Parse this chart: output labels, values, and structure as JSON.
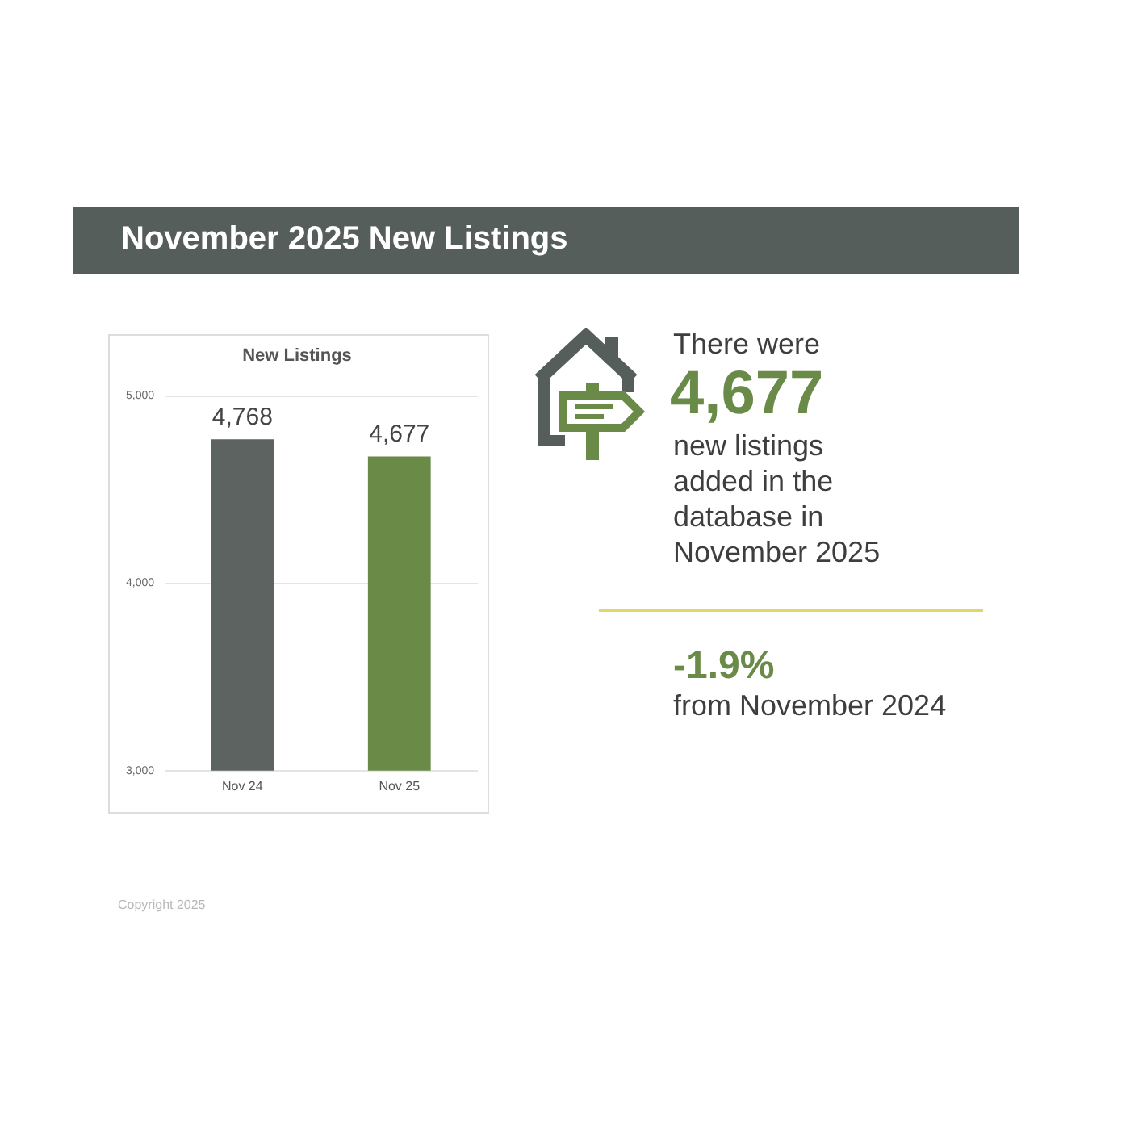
{
  "chart_data": [
    {
      "type": "other",
      "title": "November 2025 New Listings",
      "annotations": [
        "Copyright 2025"
      ]
    },
    {
      "type": "bar",
      "title": "New Listings",
      "categories": [
        "Nov 24",
        "Nov 25"
      ],
      "values": [
        4768,
        4677
      ],
      "colors": [
        "#5c6361",
        "#6a8a48"
      ],
      "value_labels": [
        "4,768",
        "4,677"
      ],
      "ylim": [
        3000,
        5000
      ],
      "yticks": [
        {
          "value": 3000,
          "label": "3,000"
        },
        {
          "value": 4000,
          "label": "4,000"
        },
        {
          "value": 5000,
          "label": "5,000"
        }
      ],
      "grid": "y"
    },
    {
      "type": "other",
      "annotations": [
        "There were",
        "4,677",
        "new listings added in the database in November 2025",
        "-1.9%",
        "from November 2024"
      ]
    }
  ]
}
